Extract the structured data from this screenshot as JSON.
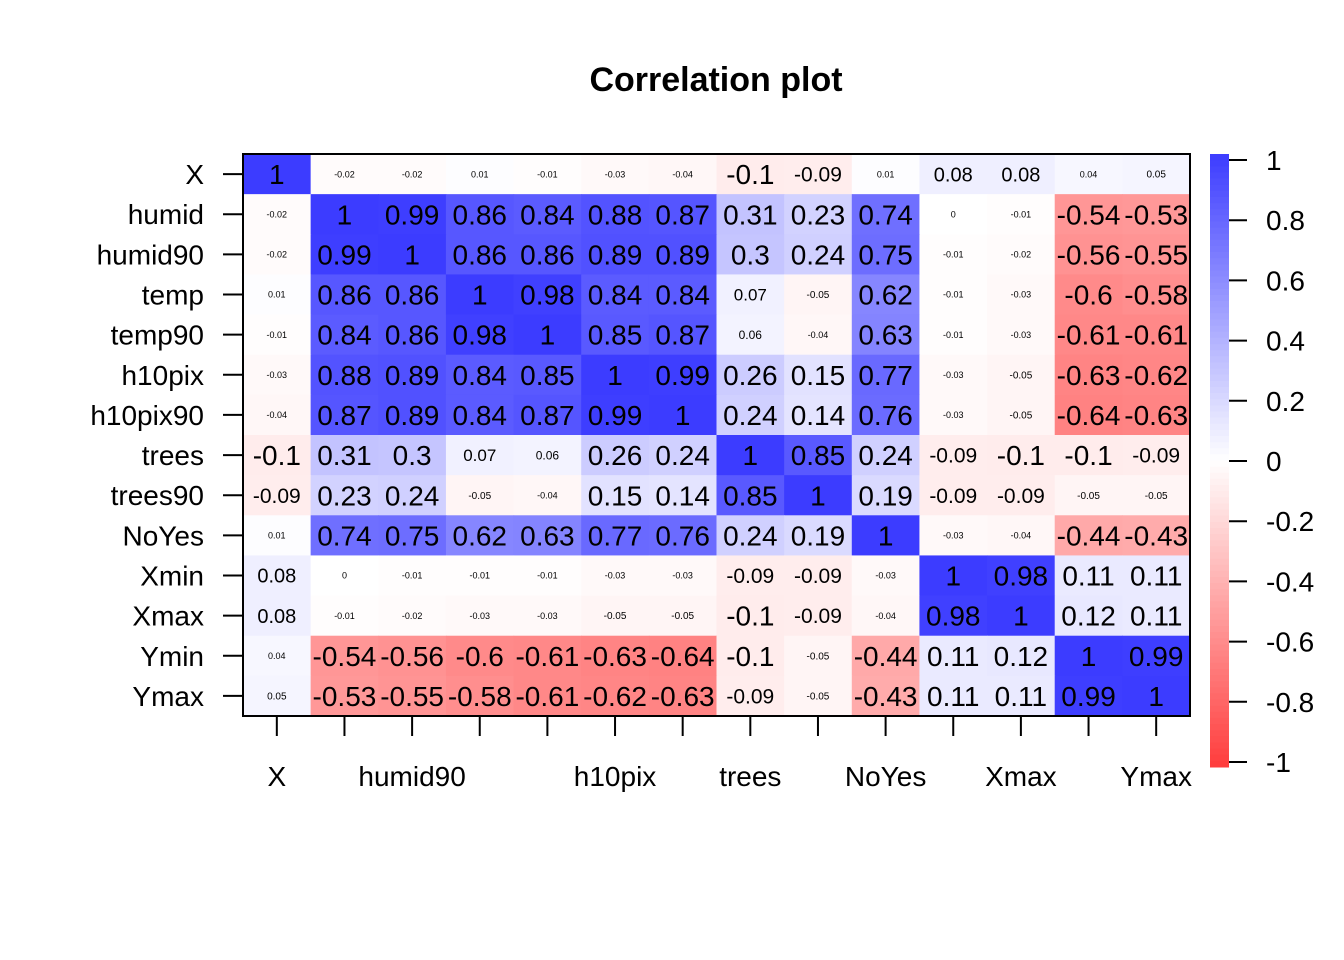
{
  "chart_data": {
    "type": "heatmap",
    "title": "Correlation plot",
    "variables": [
      "X",
      "humid",
      "humid90",
      "temp",
      "temp90",
      "h10pix",
      "h10pix90",
      "trees",
      "trees90",
      "NoYes",
      "Xmin",
      "Xmax",
      "Ymin",
      "Ymax"
    ],
    "x_tick_labels": [
      "X",
      "",
      "humid90",
      "",
      "",
      "h10pix",
      "",
      "trees",
      "",
      "NoYes",
      "",
      "Xmax",
      "",
      "Ymax"
    ],
    "matrix": [
      [
        1,
        -0.02,
        -0.02,
        0.01,
        -0.01,
        -0.03,
        -0.04,
        -0.1,
        -0.09,
        0.01,
        0.08,
        0.08,
        0.04,
        0.05
      ],
      [
        -0.02,
        1,
        0.99,
        0.86,
        0.84,
        0.88,
        0.87,
        0.31,
        0.23,
        0.74,
        0,
        -0.01,
        -0.54,
        -0.53
      ],
      [
        -0.02,
        0.99,
        1,
        0.86,
        0.86,
        0.89,
        0.89,
        0.3,
        0.24,
        0.75,
        -0.01,
        -0.02,
        -0.56,
        -0.55
      ],
      [
        0.01,
        0.86,
        0.86,
        1,
        0.98,
        0.84,
        0.84,
        0.07,
        -0.05,
        0.62,
        -0.01,
        -0.03,
        -0.6,
        -0.58
      ],
      [
        -0.01,
        0.84,
        0.86,
        0.98,
        1,
        0.85,
        0.87,
        0.06,
        -0.04,
        0.63,
        -0.01,
        -0.03,
        -0.61,
        -0.61
      ],
      [
        -0.03,
        0.88,
        0.89,
        0.84,
        0.85,
        1,
        0.99,
        0.26,
        0.15,
        0.77,
        -0.03,
        -0.05,
        -0.63,
        -0.62
      ],
      [
        -0.04,
        0.87,
        0.89,
        0.84,
        0.87,
        0.99,
        1,
        0.24,
        0.14,
        0.76,
        -0.03,
        -0.05,
        -0.64,
        -0.63
      ],
      [
        -0.1,
        0.31,
        0.3,
        0.07,
        0.06,
        0.26,
        0.24,
        1,
        0.85,
        0.24,
        -0.09,
        -0.1,
        -0.1,
        -0.09
      ],
      [
        -0.09,
        0.23,
        0.24,
        -0.05,
        -0.04,
        0.15,
        0.14,
        0.85,
        1,
        0.19,
        -0.09,
        -0.09,
        -0.05,
        -0.05
      ],
      [
        0.01,
        0.74,
        0.75,
        0.62,
        0.63,
        0.77,
        0.76,
        0.24,
        0.19,
        1,
        -0.03,
        -0.04,
        -0.44,
        -0.43
      ],
      [
        0.08,
        0,
        -0.01,
        -0.01,
        -0.01,
        -0.03,
        -0.03,
        -0.09,
        -0.09,
        -0.03,
        1,
        0.98,
        0.11,
        0.11
      ],
      [
        0.08,
        -0.01,
        -0.02,
        -0.03,
        -0.03,
        -0.05,
        -0.05,
        -0.1,
        -0.09,
        -0.04,
        0.98,
        1,
        0.12,
        0.11
      ],
      [
        0.04,
        -0.54,
        -0.56,
        -0.6,
        -0.61,
        -0.63,
        -0.64,
        -0.1,
        -0.05,
        -0.44,
        0.11,
        0.12,
        1,
        0.99
      ],
      [
        0.05,
        -0.53,
        -0.55,
        -0.58,
        -0.61,
        -0.62,
        -0.63,
        -0.09,
        -0.05,
        -0.43,
        0.11,
        0.11,
        0.99,
        1
      ]
    ],
    "colorbar": {
      "range": [
        -1,
        1
      ],
      "tick_labels": [
        "1",
        "0.8",
        "0.6",
        "0.4",
        "0.2",
        "0",
        "-0.2",
        "-0.4",
        "-0.6",
        "-0.8",
        "-1"
      ],
      "tick_values": [
        1,
        0.8,
        0.6,
        0.4,
        0.2,
        0,
        -0.2,
        -0.4,
        -0.6,
        -0.8,
        -1
      ],
      "positive_color": "#3c3cff",
      "negative_color": "#ff3c3c",
      "zero_color": "#ffffff"
    }
  }
}
